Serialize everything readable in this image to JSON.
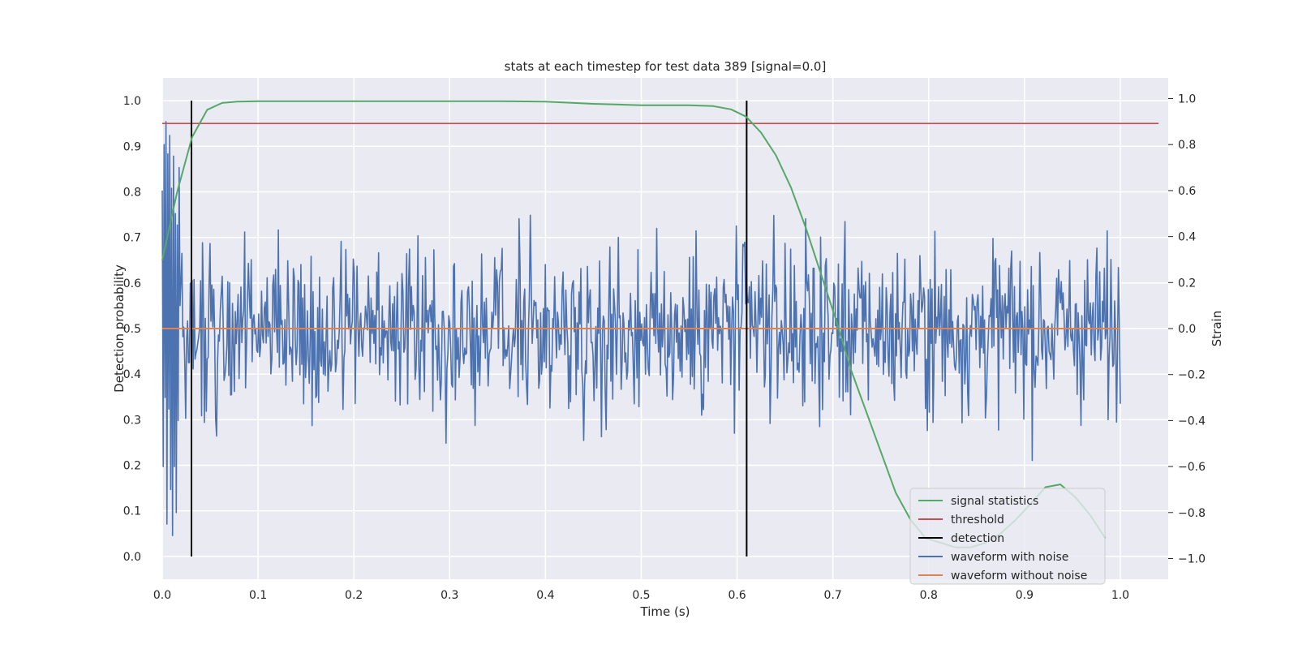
{
  "chart_data": {
    "type": "line",
    "title": "stats at each timestep for test data 389 [signal=0.0]",
    "xlabel": "Time (s)",
    "ylabel": "Detection probability",
    "ylabel_right": "Strain",
    "xlim": [
      0.0,
      1.05
    ],
    "ylim": [
      -0.05,
      1.05
    ],
    "ylim_right": [
      -1.09,
      1.09
    ],
    "x_ticks": [
      "0.0",
      "0.1",
      "0.2",
      "0.3",
      "0.4",
      "0.5",
      "0.6",
      "0.7",
      "0.8",
      "0.9",
      "1.0"
    ],
    "y_ticks": [
      "0.0",
      "0.1",
      "0.2",
      "0.3",
      "0.4",
      "0.5",
      "0.6",
      "0.7",
      "0.8",
      "0.9",
      "1.0"
    ],
    "y_right_ticks": [
      "−1.0",
      "−0.8",
      "−0.6",
      "−0.4",
      "−0.2",
      "0.0",
      "0.2",
      "0.4",
      "0.6",
      "0.8",
      "1.0"
    ],
    "grid": true,
    "legend_position": "lower-right",
    "colors": {
      "signal_statistics": "#55a868",
      "threshold": "#c44e52",
      "detection": "#000000",
      "waveform_with_noise": "#4c72b0",
      "waveform_without_noise": "#dd8452",
      "background": "#eaeaf2",
      "grid": "#ffffff"
    },
    "series": [
      {
        "name": "signal statistics",
        "axis": "left",
        "x": [
          0.0,
          0.0156,
          0.0312,
          0.0469,
          0.0625,
          0.0781,
          0.1,
          0.2,
          0.3,
          0.35,
          0.4,
          0.45,
          0.5,
          0.55,
          0.575,
          0.5938,
          0.6094,
          0.625,
          0.6406,
          0.6562,
          0.6719,
          0.6875,
          0.7031,
          0.7188,
          0.7344,
          0.75,
          0.7656,
          0.7812,
          0.7969,
          0.8125,
          0.8281,
          0.8438,
          0.8594,
          0.875,
          0.8906,
          0.9062,
          0.9219,
          0.9375,
          0.9531,
          0.9688,
          0.9844
        ],
        "y": [
          0.65,
          0.8,
          0.92,
          0.98,
          0.995,
          0.998,
          0.999,
          0.999,
          0.999,
          0.999,
          0.998,
          0.993,
          0.99,
          0.99,
          0.988,
          0.981,
          0.965,
          0.93,
          0.88,
          0.81,
          0.72,
          0.62,
          0.52,
          0.41,
          0.32,
          0.23,
          0.14,
          0.08,
          0.04,
          0.03,
          0.02,
          0.02,
          0.03,
          0.05,
          0.08,
          0.115,
          0.152,
          0.158,
          0.13,
          0.09,
          0.04
        ]
      },
      {
        "name": "threshold",
        "axis": "left",
        "x": [
          0.0,
          1.04
        ],
        "y": [
          0.95,
          0.95
        ]
      },
      {
        "name": "detection",
        "axis": "left",
        "x": [
          0.0305,
          0.61
        ],
        "y_range": [
          0.0,
          1.0
        ]
      },
      {
        "name": "waveform with noise",
        "axis": "right",
        "x_range": [
          0.0,
          1.0
        ],
        "points": 1024,
        "y_range": [
          -1.0,
          1.0
        ],
        "y_sample": [
          0.6,
          -0.6,
          0.8,
          -0.3,
          0.9,
          -0.85,
          0.76,
          -0.35,
          0.84,
          -0.7,
          0.61,
          -0.9,
          0.75,
          -0.6,
          0.5,
          -0.8,
          0.45,
          -0.4,
          0.7,
          0.1
        ]
      },
      {
        "name": "waveform without noise",
        "axis": "right",
        "x": [
          0.0,
          1.0
        ],
        "y": [
          0.0,
          0.0
        ]
      }
    ]
  }
}
